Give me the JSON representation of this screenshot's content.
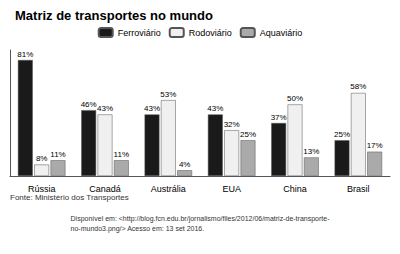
{
  "chart_data": {
    "type": "bar",
    "title": "Matriz de transportes no mundo",
    "categories": [
      "Rússia",
      "Canadá",
      "Austrália",
      "EUA",
      "China",
      "Brasil"
    ],
    "series": [
      {
        "name": "Ferroviário",
        "color": "#1a1a1a",
        "values": [
          81,
          46,
          43,
          43,
          37,
          25
        ],
        "value_labels": [
          "81%",
          "46%",
          "43%",
          "43%",
          "37%",
          "25%"
        ]
      },
      {
        "name": "Rodoviário",
        "color": "#f0f0f0",
        "values": [
          8,
          43,
          53,
          32,
          50,
          58
        ],
        "value_labels": [
          "8%",
          "43%",
          "53%",
          "32%",
          "50%",
          "58%"
        ]
      },
      {
        "name": "Aquaviário",
        "color": "#aaaaaa",
        "values": [
          11,
          11,
          4,
          25,
          13,
          17
        ],
        "value_labels": [
          "11%",
          "11%",
          "4%",
          "25%",
          "13%",
          "17%"
        ]
      }
    ],
    "ylim": [
      0,
      88
    ],
    "grid": false,
    "legend": "top",
    "data_labels": true,
    "tick_labels": "x",
    "annotations": [
      "Fonte: Ministério dos Transportes",
      "Disponível em: <http://blog.fcn.edu.br/jornalismo/files/2012/06/matriz-de-transporte-\nno-mundo3.png/> Acesso em: 13 set 2016."
    ]
  }
}
